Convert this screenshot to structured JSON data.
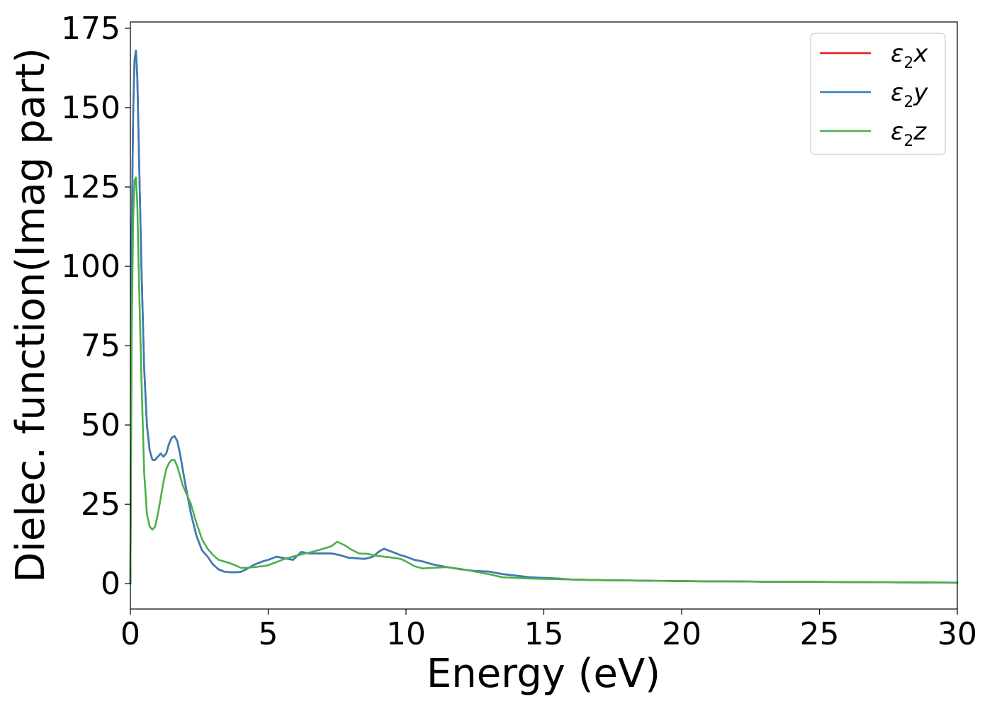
{
  "chart_data": {
    "type": "line",
    "title": "",
    "xlabel": "Energy (eV)",
    "ylabel": "Dielec. function(Imag part)",
    "xlim": [
      0,
      30
    ],
    "ylim": [
      -8,
      177
    ],
    "xticks": [
      0,
      5,
      10,
      15,
      20,
      25,
      30
    ],
    "yticks": [
      0,
      25,
      50,
      75,
      100,
      125,
      150,
      175
    ],
    "grid": false,
    "legend_position": "top-right",
    "series": [
      {
        "name": "ε₂x",
        "legend_base": "ε",
        "legend_sub": "2",
        "legend_tail": "x",
        "color": "#e41a1c",
        "x": [
          0,
          0.05,
          0.1,
          0.15,
          0.2,
          0.25,
          0.3,
          0.4,
          0.5,
          0.6,
          0.7,
          0.8,
          0.9,
          1.0,
          1.1,
          1.2,
          1.3,
          1.4,
          1.5,
          1.6,
          1.7,
          1.8,
          1.9,
          2.0,
          2.2,
          2.4,
          2.6,
          2.8,
          3.0,
          3.2,
          3.4,
          3.6,
          3.8,
          4.0,
          4.2,
          4.5,
          4.8,
          5.0,
          5.3,
          5.6,
          5.9,
          6.2,
          6.5,
          6.8,
          7.0,
          7.3,
          7.6,
          7.9,
          8.2,
          8.5,
          8.8,
          9.0,
          9.2,
          9.5,
          9.8,
          10.0,
          10.3,
          10.6,
          11.0,
          11.5,
          12.0,
          12.5,
          13.0,
          13.5,
          14.0,
          14.5,
          15.0,
          15.5,
          16.0,
          17.0,
          18.0,
          19.0,
          20.0,
          21.0,
          22.0,
          23.0,
          24.0,
          25.0,
          26.0,
          27.0,
          28.0,
          29.0,
          30.0
        ],
        "values": [
          0,
          110,
          148,
          165,
          168,
          160,
          140,
          100,
          68,
          50,
          42,
          39,
          39,
          40,
          41,
          40,
          41,
          44,
          46,
          46.5,
          45,
          41,
          36,
          31,
          22,
          15,
          10.5,
          8.5,
          6,
          4.5,
          3.8,
          3.6,
          3.6,
          3.7,
          4.5,
          6,
          7,
          7.5,
          8.5,
          8,
          7.5,
          10,
          9.5,
          9.5,
          9.5,
          9.5,
          9,
          8.2,
          8,
          7.8,
          8.5,
          10,
          11,
          10,
          9,
          8.5,
          7.5,
          7,
          6,
          5.2,
          4.5,
          4,
          3.8,
          3,
          2.5,
          2,
          1.8,
          1.6,
          1.3,
          1.1,
          1.0,
          0.9,
          0.8,
          0.7,
          0.7,
          0.6,
          0.6,
          0.55,
          0.5,
          0.45,
          0.4,
          0.35,
          0.3
        ]
      },
      {
        "name": "ε₂y",
        "legend_base": "ε",
        "legend_sub": "2",
        "legend_tail": "y",
        "color": "#377eb8",
        "x": [
          0,
          0.05,
          0.1,
          0.15,
          0.2,
          0.25,
          0.3,
          0.4,
          0.5,
          0.6,
          0.7,
          0.8,
          0.9,
          1.0,
          1.1,
          1.2,
          1.3,
          1.4,
          1.5,
          1.6,
          1.7,
          1.8,
          1.9,
          2.0,
          2.2,
          2.4,
          2.6,
          2.8,
          3.0,
          3.2,
          3.4,
          3.6,
          3.8,
          4.0,
          4.2,
          4.5,
          4.8,
          5.0,
          5.3,
          5.6,
          5.9,
          6.2,
          6.5,
          6.8,
          7.0,
          7.3,
          7.6,
          7.9,
          8.2,
          8.5,
          8.8,
          9.0,
          9.2,
          9.5,
          9.8,
          10.0,
          10.3,
          10.6,
          11.0,
          11.5,
          12.0,
          12.5,
          13.0,
          13.5,
          14.0,
          14.5,
          15.0,
          15.5,
          16.0,
          17.0,
          18.0,
          19.0,
          20.0,
          21.0,
          22.0,
          23.0,
          24.0,
          25.0,
          26.0,
          27.0,
          28.0,
          29.0,
          30.0
        ],
        "values": [
          0,
          110,
          148,
          165,
          168,
          160,
          140,
          100,
          68,
          50,
          42,
          39,
          39,
          40,
          41,
          40,
          41,
          44,
          46,
          46.5,
          45,
          41,
          36,
          31,
          22,
          15,
          10.5,
          8.5,
          6,
          4.5,
          3.8,
          3.6,
          3.6,
          3.7,
          4.5,
          6,
          7,
          7.5,
          8.5,
          8,
          7.5,
          10,
          9.5,
          9.5,
          9.5,
          9.5,
          9,
          8.2,
          8,
          7.8,
          8.5,
          10,
          11,
          10,
          9,
          8.5,
          7.5,
          7,
          6,
          5.2,
          4.5,
          4,
          3.8,
          3,
          2.5,
          2,
          1.8,
          1.6,
          1.3,
          1.1,
          1.0,
          0.9,
          0.8,
          0.7,
          0.7,
          0.6,
          0.6,
          0.55,
          0.5,
          0.45,
          0.4,
          0.35,
          0.3
        ]
      },
      {
        "name": "ε₂z",
        "legend_base": "ε",
        "legend_sub": "2",
        "legend_tail": "z",
        "color": "#4daf4a",
        "x": [
          0,
          0.05,
          0.1,
          0.15,
          0.2,
          0.25,
          0.3,
          0.4,
          0.5,
          0.6,
          0.7,
          0.8,
          0.9,
          1.0,
          1.1,
          1.2,
          1.3,
          1.4,
          1.5,
          1.6,
          1.7,
          1.8,
          1.9,
          2.0,
          2.2,
          2.4,
          2.6,
          2.8,
          3.0,
          3.2,
          3.4,
          3.6,
          3.8,
          4.0,
          4.2,
          4.5,
          4.8,
          5.0,
          5.3,
          5.6,
          5.9,
          6.2,
          6.5,
          6.8,
          7.0,
          7.3,
          7.5,
          7.8,
          8.0,
          8.3,
          8.6,
          8.9,
          9.2,
          9.5,
          9.8,
          10.0,
          10.3,
          10.6,
          11.0,
          11.5,
          12.0,
          12.5,
          13.0,
          13.5,
          14.0,
          14.5,
          15.0,
          15.5,
          16.0,
          17.0,
          18.0,
          19.0,
          20.0,
          21.0,
          22.0,
          23.0,
          24.0,
          25.0,
          26.0,
          27.0,
          28.0,
          29.0,
          30.0
        ],
        "values": [
          0,
          80,
          115,
          127,
          128,
          120,
          100,
          65,
          35,
          22,
          18,
          17,
          18,
          22,
          27,
          32,
          36,
          38,
          39,
          39,
          37,
          34,
          31,
          29,
          25,
          19,
          14,
          11,
          9,
          7.5,
          7,
          6.5,
          5.8,
          5,
          5,
          5.2,
          5.5,
          5.8,
          6.8,
          7.8,
          8.5,
          9.2,
          9.8,
          10.5,
          11,
          11.8,
          13.2,
          12,
          10.8,
          9.5,
          9.4,
          8.8,
          8.5,
          8.2,
          7.8,
          7,
          5.5,
          4.8,
          5,
          5.2,
          4.6,
          3.8,
          3,
          2,
          1.8,
          1.6,
          1.5,
          1.4,
          1.3,
          1.1,
          1.0,
          0.9,
          0.8,
          0.75,
          0.7,
          0.65,
          0.6,
          0.55,
          0.5,
          0.45,
          0.4,
          0.35,
          0.3
        ]
      }
    ]
  }
}
